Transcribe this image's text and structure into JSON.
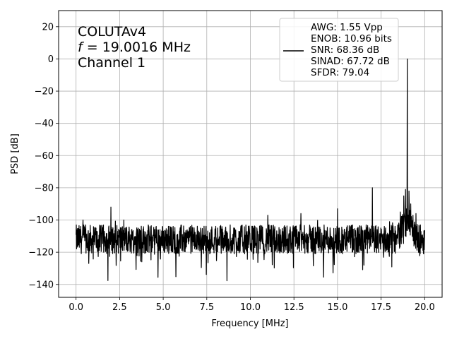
{
  "chart_data": {
    "type": "line",
    "xlabel": "Frequency [MHz]",
    "ylabel": "PSD [dB]",
    "xlim": [
      -1,
      21
    ],
    "ylim": [
      -148,
      30
    ],
    "xticks": [
      0.0,
      2.5,
      5.0,
      7.5,
      10.0,
      12.5,
      15.0,
      17.5,
      20.0
    ],
    "xtick_labels": [
      "0.0",
      "2.5",
      "5.0",
      "7.5",
      "10.0",
      "12.5",
      "15.0",
      "17.5",
      "20.0"
    ],
    "yticks": [
      20,
      0,
      -20,
      -40,
      -60,
      -80,
      -100,
      -120,
      -140
    ],
    "ytick_labels": [
      "20",
      "0",
      "−20",
      "−40",
      "−60",
      "−80",
      "−100",
      "−120",
      "−140"
    ],
    "grid": true,
    "legend_position": "upper-right",
    "annotation": {
      "line1": "COLUTAv4",
      "line2_italic": "f",
      "line2_rest": " = 19.0016 MHz",
      "line3": "Channel 1"
    },
    "legend": [
      "AWG: 1.55 Vpp",
      "ENOB: 10.96 bits",
      "SNR: 68.36 dB",
      "SINAD: 67.72 dB",
      "SFDR: 79.04"
    ],
    "series": [
      {
        "color": "#000000",
        "noise_floor_db": -112,
        "noise_min_db": -141,
        "noise_max_db": -100,
        "x_range": [
          0.0,
          20.0
        ],
        "peaks": [
          {
            "x": 19.0016,
            "y": 0.0
          },
          {
            "x": 17.0,
            "y": -80
          },
          {
            "x": 2.0,
            "y": -92
          },
          {
            "x": 15.0,
            "y": -93
          },
          {
            "x": 12.9,
            "y": -96
          },
          {
            "x": 11.0,
            "y": -97
          },
          {
            "x": 18.9,
            "y": -81
          },
          {
            "x": 19.1,
            "y": -82
          },
          {
            "x": 18.8,
            "y": -85
          },
          {
            "x": 19.2,
            "y": -90
          },
          {
            "x": 18.6,
            "y": -95
          }
        ]
      }
    ]
  }
}
